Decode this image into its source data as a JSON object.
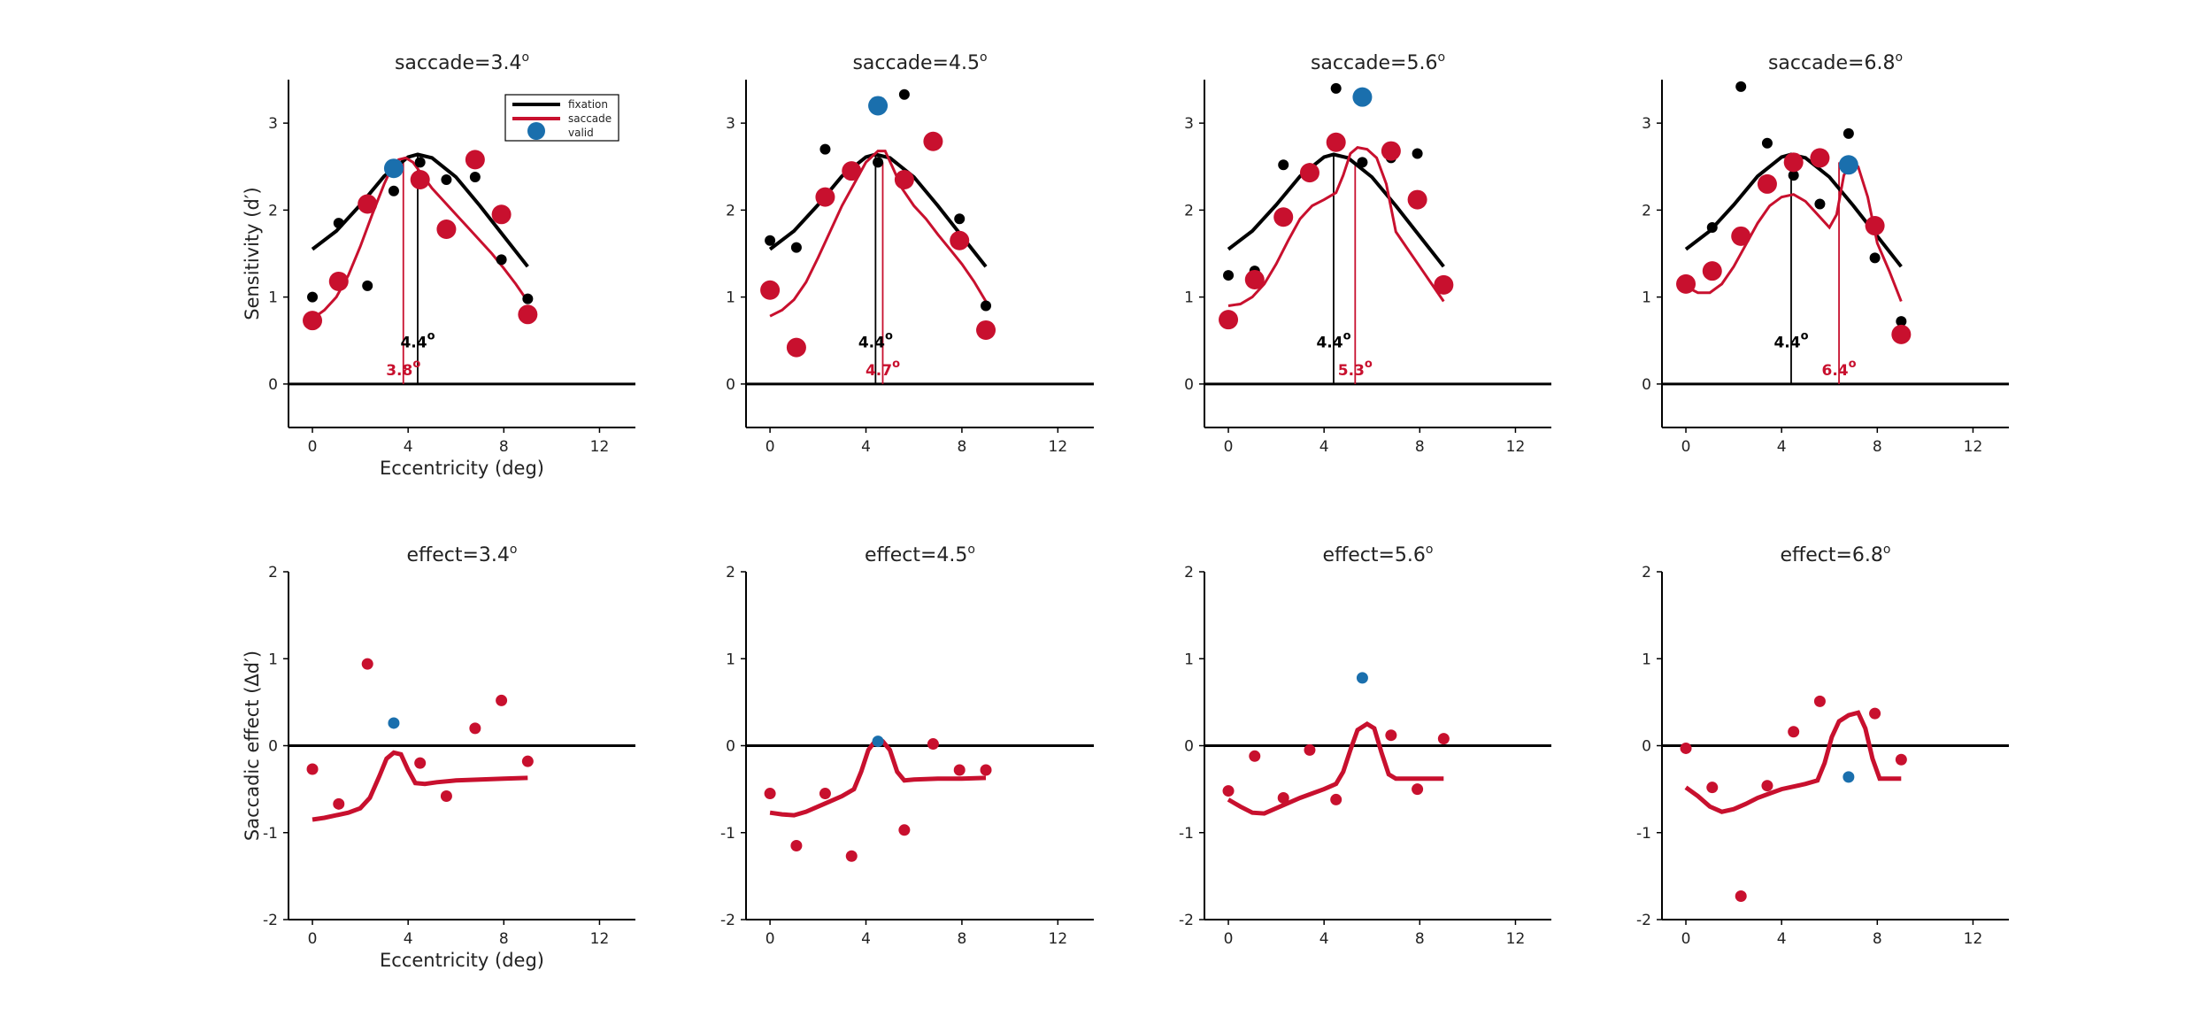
{
  "figure": {
    "background": "#ffffff"
  },
  "colors": {
    "fixation": "#000000",
    "saccade": "#c8102e",
    "valid": "#1a6fad"
  },
  "legend": {
    "placement": "top-right",
    "entries": [
      "fixation",
      "saccade",
      "valid"
    ]
  },
  "chart_data": [
    {
      "type": "scatter",
      "title": "saccade=3.4",
      "title_sup": "o",
      "xlabel": "Eccentricity (deg)",
      "ylabel": "Sensitivity (d′)",
      "xlim": [
        -1,
        13.5
      ],
      "ylim": [
        -0.5,
        3.5
      ],
      "xticks": [
        0,
        4,
        8,
        12
      ],
      "yticks": [
        0,
        1,
        2,
        3
      ],
      "fixation_points": {
        "x": [
          0,
          1.1,
          2.3,
          3.4,
          4.5,
          5.6,
          6.8,
          7.9,
          9.0
        ],
        "y": [
          1.0,
          1.85,
          1.13,
          2.22,
          2.55,
          2.35,
          2.38,
          1.43,
          0.98
        ]
      },
      "saccade_points": {
        "x": [
          0,
          1.1,
          2.3,
          4.5,
          5.6,
          6.8,
          7.9,
          9.0
        ],
        "y": [
          0.73,
          1.18,
          2.07,
          2.35,
          1.78,
          2.58,
          1.95,
          0.8
        ]
      },
      "valid_point": {
        "x": 3.4,
        "y": 2.48
      },
      "fixation_fit": {
        "x": [
          0,
          1,
          2,
          3,
          4,
          4.4,
          5,
          6,
          7,
          8,
          9
        ],
        "y": [
          1.55,
          1.76,
          2.06,
          2.39,
          2.61,
          2.64,
          2.6,
          2.38,
          2.05,
          1.7,
          1.35
        ]
      },
      "saccade_fit": {
        "x": [
          0,
          0.5,
          1,
          1.5,
          2,
          2.5,
          3,
          3.3,
          3.6,
          3.9,
          4.2,
          4.6,
          5,
          5.5,
          6,
          6.5,
          7,
          7.5,
          8,
          8.5,
          9
        ],
        "y": [
          0.75,
          0.85,
          1.0,
          1.25,
          1.58,
          1.95,
          2.3,
          2.48,
          2.58,
          2.6,
          2.55,
          2.4,
          2.25,
          2.1,
          1.95,
          1.8,
          1.65,
          1.5,
          1.33,
          1.15,
          0.95
        ]
      },
      "fixation_peak": {
        "x": 4.4,
        "label": "4.4",
        "sup": "o"
      },
      "saccade_peak": {
        "x": 3.8,
        "label": "3.8",
        "sup": "o"
      },
      "show_legend": true
    },
    {
      "type": "scatter",
      "title": "saccade=4.5",
      "title_sup": "o",
      "xlabel": "",
      "ylabel": "",
      "xlim": [
        -1,
        13.5
      ],
      "ylim": [
        -0.5,
        3.5
      ],
      "xticks": [
        0,
        4,
        8,
        12
      ],
      "yticks": [
        0,
        1,
        2,
        3
      ],
      "fixation_points": {
        "x": [
          0,
          1.1,
          2.3,
          3.4,
          4.5,
          5.6,
          6.8,
          7.9,
          9.0
        ],
        "y": [
          1.65,
          1.57,
          2.7,
          2.47,
          2.55,
          3.33,
          2.8,
          1.9,
          0.9
        ]
      },
      "saccade_points": {
        "x": [
          0,
          1.1,
          2.3,
          3.4,
          5.6,
          6.8,
          7.9,
          9.0
        ],
        "y": [
          1.08,
          0.42,
          2.15,
          2.45,
          2.35,
          2.79,
          1.65,
          0.62
        ]
      },
      "valid_point": {
        "x": 4.5,
        "y": 3.2
      },
      "fixation_fit": {
        "x": [
          0,
          1,
          2,
          3,
          4,
          4.4,
          5,
          6,
          7,
          8,
          9
        ],
        "y": [
          1.55,
          1.76,
          2.06,
          2.39,
          2.61,
          2.64,
          2.6,
          2.38,
          2.05,
          1.7,
          1.35
        ]
      },
      "saccade_fit": {
        "x": [
          0,
          0.5,
          1,
          1.5,
          2,
          2.5,
          3,
          3.5,
          4,
          4.5,
          4.8,
          5.1,
          5.5,
          6,
          6.5,
          7,
          7.5,
          8,
          8.5,
          9
        ],
        "y": [
          0.78,
          0.85,
          0.97,
          1.17,
          1.45,
          1.75,
          2.05,
          2.3,
          2.55,
          2.68,
          2.68,
          2.5,
          2.25,
          2.05,
          1.9,
          1.72,
          1.55,
          1.38,
          1.18,
          0.95
        ]
      },
      "fixation_peak": {
        "x": 4.4,
        "label": "4.4",
        "sup": "o"
      },
      "saccade_peak": {
        "x": 4.7,
        "label": "4.7",
        "sup": "o"
      },
      "show_legend": false
    },
    {
      "type": "scatter",
      "title": "saccade=5.6",
      "title_sup": "o",
      "xlabel": "",
      "ylabel": "",
      "xlim": [
        -1,
        13.5
      ],
      "ylim": [
        -0.5,
        3.5
      ],
      "xticks": [
        0,
        4,
        8,
        12
      ],
      "yticks": [
        0,
        1,
        2,
        3
      ],
      "fixation_points": {
        "x": [
          0,
          1.1,
          2.3,
          3.4,
          4.5,
          5.6,
          6.8,
          7.9,
          9.0
        ],
        "y": [
          1.25,
          1.3,
          2.52,
          2.48,
          3.4,
          2.55,
          2.6,
          2.65,
          1.12
        ]
      },
      "saccade_points": {
        "x": [
          0,
          1.1,
          2.3,
          3.4,
          4.5,
          6.8,
          7.9,
          9.0
        ],
        "y": [
          0.74,
          1.2,
          1.92,
          2.43,
          2.78,
          2.68,
          2.12,
          1.14
        ]
      },
      "valid_point": {
        "x": 5.6,
        "y": 3.3
      },
      "fixation_fit": {
        "x": [
          0,
          1,
          2,
          3,
          4,
          4.4,
          5,
          6,
          7,
          8,
          9
        ],
        "y": [
          1.55,
          1.76,
          2.06,
          2.39,
          2.61,
          2.64,
          2.6,
          2.38,
          2.05,
          1.7,
          1.35
        ]
      },
      "saccade_fit": {
        "x": [
          0,
          0.5,
          1,
          1.5,
          2,
          2.5,
          3,
          3.5,
          4,
          4.5,
          4.8,
          5.1,
          5.4,
          5.8,
          6.2,
          6.6,
          7,
          7.5,
          8,
          8.5,
          9
        ],
        "y": [
          0.9,
          0.92,
          1.0,
          1.15,
          1.38,
          1.65,
          1.9,
          2.05,
          2.12,
          2.2,
          2.4,
          2.65,
          2.72,
          2.7,
          2.6,
          2.3,
          1.75,
          1.55,
          1.35,
          1.15,
          0.95
        ]
      },
      "fixation_peak": {
        "x": 4.4,
        "label": "4.4",
        "sup": "o"
      },
      "saccade_peak": {
        "x": 5.3,
        "label": "5.3",
        "sup": "o"
      },
      "show_legend": false
    },
    {
      "type": "scatter",
      "title": "saccade=6.8",
      "title_sup": "o",
      "xlabel": "",
      "ylabel": "",
      "xlim": [
        -1,
        13.5
      ],
      "ylim": [
        -0.5,
        3.5
      ],
      "xticks": [
        0,
        4,
        8,
        12
      ],
      "yticks": [
        0,
        1,
        2,
        3
      ],
      "fixation_points": {
        "x": [
          0,
          1.1,
          2.3,
          3.4,
          4.5,
          5.6,
          6.8,
          7.9,
          9.0
        ],
        "y": [
          1.15,
          1.8,
          3.42,
          2.77,
          2.4,
          2.07,
          2.88,
          1.45,
          0.72
        ]
      },
      "saccade_points": {
        "x": [
          0,
          1.1,
          2.3,
          3.4,
          4.5,
          5.6,
          7.9,
          9.0
        ],
        "y": [
          1.15,
          1.3,
          1.7,
          2.3,
          2.55,
          2.6,
          1.82,
          0.57
        ]
      },
      "valid_point": {
        "x": 6.8,
        "y": 2.52
      },
      "fixation_fit": {
        "x": [
          0,
          1,
          2,
          3,
          4,
          4.4,
          5,
          6,
          7,
          8,
          9
        ],
        "y": [
          1.55,
          1.76,
          2.06,
          2.39,
          2.61,
          2.64,
          2.6,
          2.38,
          2.05,
          1.7,
          1.35
        ]
      },
      "saccade_fit": {
        "x": [
          0,
          0.5,
          1,
          1.5,
          2,
          2.5,
          3,
          3.5,
          4,
          4.5,
          5,
          5.5,
          6,
          6.3,
          6.6,
          6.9,
          7.2,
          7.6,
          8,
          8.5,
          9
        ],
        "y": [
          1.12,
          1.05,
          1.05,
          1.15,
          1.35,
          1.6,
          1.85,
          2.05,
          2.15,
          2.18,
          2.1,
          1.95,
          1.8,
          1.95,
          2.4,
          2.55,
          2.5,
          2.15,
          1.62,
          1.3,
          0.95
        ]
      },
      "fixation_peak": {
        "x": 4.4,
        "label": "4.4",
        "sup": "o"
      },
      "saccade_peak": {
        "x": 6.4,
        "label": "6.4",
        "sup": "o"
      },
      "show_legend": false
    },
    {
      "type": "scatter",
      "title": "effect=3.4",
      "title_sup": "o",
      "xlabel": "Eccentricity (deg)",
      "ylabel": "Saccadic effect (Δd′)",
      "xlim": [
        -1,
        13.5
      ],
      "ylim": [
        -2,
        2
      ],
      "xticks": [
        0,
        4,
        8,
        12
      ],
      "yticks": [
        -2,
        -1,
        0,
        1,
        2
      ],
      "effect_points": {
        "x": [
          0,
          1.1,
          2.3,
          4.5,
          5.6,
          6.8,
          7.9,
          9.0
        ],
        "y": [
          -0.27,
          -0.67,
          0.94,
          -0.2,
          -0.58,
          0.2,
          0.52,
          -0.18
        ]
      },
      "valid_point": {
        "x": 3.4,
        "y": 0.26
      },
      "effect_fit": {
        "x": [
          0,
          0.5,
          1,
          1.5,
          2,
          2.4,
          2.8,
          3.1,
          3.4,
          3.7,
          4.0,
          4.3,
          4.7,
          5.2,
          6,
          7,
          8,
          9
        ],
        "y": [
          -0.85,
          -0.83,
          -0.8,
          -0.77,
          -0.72,
          -0.6,
          -0.35,
          -0.15,
          -0.08,
          -0.1,
          -0.28,
          -0.43,
          -0.44,
          -0.42,
          -0.4,
          -0.39,
          -0.38,
          -0.37
        ]
      },
      "show_legend": false
    },
    {
      "type": "scatter",
      "title": "effect=4.5",
      "title_sup": "o",
      "xlabel": "",
      "ylabel": "",
      "xlim": [
        -1,
        13.5
      ],
      "ylim": [
        -2,
        2
      ],
      "xticks": [
        0,
        4,
        8,
        12
      ],
      "yticks": [
        -2,
        -1,
        0,
        1,
        2
      ],
      "effect_points": {
        "x": [
          0,
          1.1,
          2.3,
          3.4,
          5.6,
          6.8,
          7.9,
          9.0
        ],
        "y": [
          -0.55,
          -1.15,
          -0.55,
          -1.27,
          -0.97,
          0.02,
          -0.28,
          -0.28
        ]
      },
      "valid_point": {
        "x": 4.5,
        "y": 0.05
      },
      "effect_fit": {
        "x": [
          0,
          0.5,
          1,
          1.5,
          2,
          2.5,
          3,
          3.5,
          3.8,
          4.1,
          4.4,
          4.7,
          5,
          5.3,
          5.6,
          6,
          7,
          8,
          9
        ],
        "y": [
          -0.77,
          -0.79,
          -0.8,
          -0.76,
          -0.7,
          -0.64,
          -0.58,
          -0.5,
          -0.3,
          -0.05,
          0.06,
          0.05,
          -0.05,
          -0.3,
          -0.4,
          -0.39,
          -0.38,
          -0.38,
          -0.37
        ]
      },
      "show_legend": false
    },
    {
      "type": "scatter",
      "title": "effect=5.6",
      "title_sup": "o",
      "xlabel": "",
      "ylabel": "",
      "xlim": [
        -1,
        13.5
      ],
      "ylim": [
        -2,
        2
      ],
      "xticks": [
        0,
        4,
        8,
        12
      ],
      "yticks": [
        -2,
        -1,
        0,
        1,
        2
      ],
      "effect_points": {
        "x": [
          0,
          1.1,
          2.3,
          3.4,
          4.5,
          6.8,
          7.9,
          9.0
        ],
        "y": [
          -0.52,
          -0.12,
          -0.6,
          -0.05,
          -0.62,
          0.12,
          -0.5,
          0.08
        ]
      },
      "valid_point": {
        "x": 5.6,
        "y": 0.78
      },
      "effect_fit": {
        "x": [
          0,
          0.5,
          1,
          1.5,
          2,
          2.5,
          3,
          3.5,
          4,
          4.5,
          4.8,
          5.1,
          5.4,
          5.8,
          6.1,
          6.4,
          6.7,
          7,
          7.5,
          8,
          9
        ],
        "y": [
          -0.62,
          -0.7,
          -0.77,
          -0.78,
          -0.72,
          -0.66,
          -0.6,
          -0.55,
          -0.5,
          -0.44,
          -0.3,
          -0.05,
          0.18,
          0.25,
          0.2,
          -0.08,
          -0.33,
          -0.38,
          -0.38,
          -0.38,
          -0.38
        ]
      },
      "show_legend": false
    },
    {
      "type": "scatter",
      "title": "effect=6.8",
      "title_sup": "o",
      "xlabel": "",
      "ylabel": "",
      "xlim": [
        -1,
        13.5
      ],
      "ylim": [
        -2,
        2
      ],
      "xticks": [
        0,
        4,
        8,
        12
      ],
      "yticks": [
        -2,
        -1,
        0,
        1,
        2
      ],
      "effect_points": {
        "x": [
          0,
          1.1,
          2.3,
          3.4,
          4.5,
          5.6,
          7.9,
          9.0
        ],
        "y": [
          -0.03,
          -0.48,
          -1.73,
          -0.46,
          0.16,
          0.51,
          0.37,
          -0.16
        ]
      },
      "valid_point": {
        "x": 6.8,
        "y": -0.36
      },
      "effect_fit": {
        "x": [
          0,
          0.5,
          1,
          1.5,
          2,
          2.5,
          3,
          3.5,
          4,
          4.5,
          5,
          5.5,
          5.8,
          6.1,
          6.4,
          6.8,
          7.2,
          7.5,
          7.8,
          8.1,
          9
        ],
        "y": [
          -0.48,
          -0.58,
          -0.7,
          -0.76,
          -0.73,
          -0.67,
          -0.6,
          -0.55,
          -0.5,
          -0.47,
          -0.44,
          -0.4,
          -0.2,
          0.1,
          0.28,
          0.35,
          0.38,
          0.2,
          -0.15,
          -0.38,
          -0.38
        ]
      },
      "show_legend": false
    }
  ]
}
